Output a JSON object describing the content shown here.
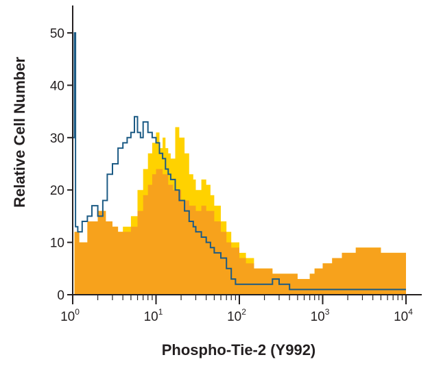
{
  "chart_data": {
    "type": "area",
    "title": "",
    "xlabel": "Phospho-Tie-2 (Y992)",
    "ylabel": "Relative Cell Number",
    "x_scale": "log",
    "xlim": [
      1,
      10000
    ],
    "ylim": [
      0,
      55
    ],
    "x_ticks": [
      {
        "base": "10",
        "exp": "0",
        "value": 1
      },
      {
        "base": "10",
        "exp": "1",
        "value": 10
      },
      {
        "base": "10",
        "exp": "2",
        "value": 100
      },
      {
        "base": "10",
        "exp": "3",
        "value": 1000
      },
      {
        "base": "10",
        "exp": "4",
        "value": 10000
      }
    ],
    "y_ticks": [
      "0",
      "10",
      "20",
      "30",
      "40",
      "50"
    ],
    "grid": false,
    "legend": "none",
    "colors": {
      "yellow_fill": "#ffd200",
      "orange_fill": "#f7a21c",
      "blue_line": "#1b5a84",
      "axis": "#231f20"
    },
    "series": [
      {
        "style": "filled-yellow",
        "points": [
          [
            1,
            0
          ],
          [
            1.05,
            12
          ],
          [
            1.2,
            10
          ],
          [
            1.5,
            14
          ],
          [
            2,
            16
          ],
          [
            2.5,
            14
          ],
          [
            3,
            13
          ],
          [
            3.5,
            12
          ],
          [
            4,
            13
          ],
          [
            5,
            15
          ],
          [
            6,
            20
          ],
          [
            7,
            24
          ],
          [
            8,
            27
          ],
          [
            9,
            29
          ],
          [
            10,
            31
          ],
          [
            11,
            28
          ],
          [
            12,
            30
          ],
          [
            13,
            28
          ],
          [
            14,
            27
          ],
          [
            15,
            26
          ],
          [
            17,
            32
          ],
          [
            19,
            30
          ],
          [
            22,
            27
          ],
          [
            25,
            23
          ],
          [
            28,
            22
          ],
          [
            30,
            20
          ],
          [
            35,
            22
          ],
          [
            40,
            21
          ],
          [
            45,
            19
          ],
          [
            50,
            17
          ],
          [
            60,
            14
          ],
          [
            70,
            12
          ],
          [
            80,
            10
          ],
          [
            100,
            8
          ],
          [
            120,
            7
          ],
          [
            150,
            5
          ],
          [
            200,
            5
          ],
          [
            250,
            4
          ],
          [
            300,
            4
          ],
          [
            400,
            4
          ],
          [
            500,
            3
          ],
          [
            600,
            3
          ],
          [
            700,
            4
          ],
          [
            800,
            5
          ],
          [
            1000,
            6
          ],
          [
            1300,
            7
          ],
          [
            1700,
            8
          ],
          [
            2000,
            8
          ],
          [
            2500,
            9
          ],
          [
            3000,
            9
          ],
          [
            4000,
            9
          ],
          [
            5000,
            8
          ],
          [
            6000,
            8
          ],
          [
            8000,
            8
          ],
          [
            10000,
            7
          ],
          [
            10000,
            0
          ]
        ]
      },
      {
        "style": "filled-orange",
        "points": [
          [
            1,
            0
          ],
          [
            1.05,
            12
          ],
          [
            1.2,
            10
          ],
          [
            1.5,
            14
          ],
          [
            2,
            16
          ],
          [
            2.5,
            14
          ],
          [
            3,
            13
          ],
          [
            3.5,
            12
          ],
          [
            4,
            12
          ],
          [
            5,
            13
          ],
          [
            6,
            16
          ],
          [
            7,
            19
          ],
          [
            8,
            21
          ],
          [
            9,
            23
          ],
          [
            10,
            24
          ],
          [
            12,
            23
          ],
          [
            14,
            21
          ],
          [
            16,
            20
          ],
          [
            18,
            20
          ],
          [
            20,
            18
          ],
          [
            25,
            17
          ],
          [
            30,
            16
          ],
          [
            35,
            17
          ],
          [
            40,
            16
          ],
          [
            50,
            14
          ],
          [
            60,
            12
          ],
          [
            70,
            10
          ],
          [
            80,
            9
          ],
          [
            100,
            7
          ],
          [
            120,
            6
          ],
          [
            150,
            5
          ],
          [
            200,
            5
          ],
          [
            250,
            4
          ],
          [
            300,
            4
          ],
          [
            400,
            4
          ],
          [
            500,
            3
          ],
          [
            600,
            3
          ],
          [
            700,
            4
          ],
          [
            800,
            5
          ],
          [
            1000,
            6
          ],
          [
            1300,
            7
          ],
          [
            1700,
            8
          ],
          [
            2000,
            8
          ],
          [
            2500,
            9
          ],
          [
            3000,
            9
          ],
          [
            4000,
            9
          ],
          [
            5000,
            8
          ],
          [
            6000,
            8
          ],
          [
            8000,
            8
          ],
          [
            10000,
            7
          ],
          [
            10000,
            0
          ]
        ]
      },
      {
        "style": "outline-blue",
        "points": [
          [
            1,
            30
          ],
          [
            1.05,
            50
          ],
          [
            1.08,
            13
          ],
          [
            1.15,
            12
          ],
          [
            1.3,
            14
          ],
          [
            1.5,
            15
          ],
          [
            1.7,
            17
          ],
          [
            2,
            15
          ],
          [
            2.3,
            18
          ],
          [
            2.6,
            23
          ],
          [
            3,
            25
          ],
          [
            3.5,
            28
          ],
          [
            4,
            29
          ],
          [
            4.5,
            30
          ],
          [
            5,
            31
          ],
          [
            5.5,
            34
          ],
          [
            6,
            31
          ],
          [
            6.5,
            30
          ],
          [
            7,
            33
          ],
          [
            8,
            31
          ],
          [
            9,
            30
          ],
          [
            10,
            29
          ],
          [
            11,
            27
          ],
          [
            12,
            26
          ],
          [
            13,
            24
          ],
          [
            14,
            23
          ],
          [
            15,
            22
          ],
          [
            17,
            20
          ],
          [
            19,
            18
          ],
          [
            22,
            16
          ],
          [
            25,
            14
          ],
          [
            28,
            13
          ],
          [
            30,
            12
          ],
          [
            35,
            11
          ],
          [
            40,
            10
          ],
          [
            45,
            9
          ],
          [
            50,
            8
          ],
          [
            60,
            7
          ],
          [
            70,
            5
          ],
          [
            80,
            3
          ],
          [
            90,
            2
          ],
          [
            100,
            2
          ],
          [
            150,
            2
          ],
          [
            200,
            2
          ],
          [
            250,
            3
          ],
          [
            300,
            2
          ],
          [
            400,
            1
          ],
          [
            500,
            1
          ],
          [
            700,
            1
          ],
          [
            1000,
            1
          ],
          [
            1500,
            1
          ],
          [
            2000,
            1
          ],
          [
            3000,
            1
          ],
          [
            5000,
            1
          ],
          [
            8000,
            1
          ],
          [
            10000,
            1
          ]
        ]
      }
    ]
  }
}
